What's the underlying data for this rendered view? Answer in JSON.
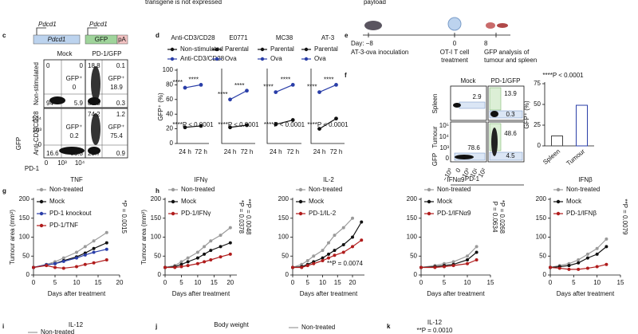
{
  "top_text": [
    "transgene is not expressed",
    "payload"
  ],
  "panel_labels": [
    "c",
    "d",
    "e",
    "f",
    "g",
    "h",
    "i",
    "j",
    "k"
  ],
  "panel_c": {
    "gene_labels": [
      "Pdcd1",
      "Pdcd1"
    ],
    "construct": [
      "Pdcd1",
      "GFP",
      "pA"
    ],
    "columns": [
      "Mock",
      "PD-1/GFP"
    ],
    "rows": [
      "Non-stimulated",
      "Anti-CD3/CD28"
    ],
    "gate_label": "GFP⁺",
    "plots": [
      {
        "tl": "0",
        "tr": "0",
        "bl": "94",
        "br": "5.9",
        "gfp": "0"
      },
      {
        "tl": "18.8",
        "tr": "0.1",
        "bl": "80.3",
        "br": "0.3",
        "gfp": "18.9"
      },
      {
        "bl": "16.6",
        "br": "83.3",
        "gfp": "0.2"
      },
      {
        "tl": "74.2",
        "tr": "1.2",
        "bl": "23.7",
        "br": "0.9",
        "gfp": "75.4"
      }
    ],
    "ylabel": "GFP",
    "xlabel": "PD-1",
    "yticks": [
      "10⁴",
      "10³",
      "0"
    ],
    "xticks": [
      "0",
      "10³",
      "10⁴"
    ]
  },
  "panel_e": {
    "steps": [
      {
        "day": "Day: −8",
        "lines": [
          "AT-3-ova inoculation"
        ]
      },
      {
        "day": "0",
        "lines": [
          "OT-I T cell",
          "treatment"
        ]
      },
      {
        "day": "8",
        "lines": [
          "GFP analysis of",
          "tumour and spleen"
        ]
      }
    ]
  },
  "panel_f": {
    "columns": [
      "Mock",
      "PD-1/GFP"
    ],
    "rows": [
      "Spleen",
      "Tumour"
    ],
    "gates": [
      "2.9",
      "13.9",
      "0.3",
      "78.6",
      "48.6",
      "4.5"
    ],
    "xlabel": "PD-1",
    "ylabel": "GFP",
    "xticks": [
      "−10⁰",
      "0",
      "10⁰",
      "10¹",
      "10²"
    ],
    "yticks": [
      "10⁵",
      "10⁴",
      "10³",
      "0"
    ]
  },
  "chart_data": [
    {
      "type": "line",
      "title": "Anti-CD3/CD28",
      "categories": [
        "24 h",
        "72 h"
      ],
      "series": [
        {
          "name": "Non-stimulated",
          "color": "#111111",
          "values": [
            22,
            24
          ]
        },
        {
          "name": "Anti-CD3/CD28",
          "color": "#2a3ea8",
          "values": [
            76,
            80
          ]
        }
      ],
      "ylim": [
        0,
        100
      ],
      "yticks": [
        0,
        20,
        40,
        60,
        80,
        100
      ],
      "ylabel": "GFP⁺ (%)",
      "significance": [
        "****",
        "****"
      ],
      "p_text": "****P < 0.0001"
    },
    {
      "type": "line",
      "title": "E0771",
      "categories": [
        "24 h",
        "72 h"
      ],
      "series": [
        {
          "name": "Parental",
          "color": "#111111",
          "values": [
            22,
            25
          ]
        },
        {
          "name": "Ova",
          "color": "#2a3ea8",
          "values": [
            60,
            72
          ]
        }
      ],
      "ylim": [
        0,
        100
      ],
      "significance": [
        "****",
        "****"
      ],
      "p_text": "****P < 0.0001"
    },
    {
      "type": "line",
      "title": "MC38",
      "categories": [
        "24 h",
        "72 h"
      ],
      "series": [
        {
          "name": "Parental",
          "color": "#111111",
          "values": [
            26,
            32
          ]
        },
        {
          "name": "Ova",
          "color": "#2a3ea8",
          "values": [
            70,
            80
          ]
        }
      ],
      "ylim": [
        0,
        100
      ],
      "significance": [
        "****",
        "****"
      ],
      "p_text": "****P < 0.0001"
    },
    {
      "type": "line",
      "title": "AT-3",
      "categories": [
        "24 h",
        "72 h"
      ],
      "series": [
        {
          "name": "Parental",
          "color": "#111111",
          "values": [
            20,
            34
          ]
        },
        {
          "name": "Ova",
          "color": "#2a3ea8",
          "values": [
            70,
            80
          ]
        }
      ],
      "ylim": [
        0,
        100
      ],
      "significance": [
        "****",
        "****"
      ],
      "p_text": "****P < 0.0001"
    },
    {
      "type": "bar",
      "categories": [
        "Spleen",
        "Tumour"
      ],
      "values": [
        12,
        49
      ],
      "colors": [
        "#444444",
        "#2a3ea8"
      ],
      "ylim": [
        0,
        75
      ],
      "yticks": [
        0,
        25,
        50,
        75
      ],
      "ylabel": "GFP⁺ (%)",
      "p_text": "****P < 0.0001"
    },
    {
      "type": "line",
      "title": "TNF",
      "x": [
        0,
        3,
        5,
        7,
        10,
        12,
        14,
        17
      ],
      "series": [
        {
          "name": "Non-treated",
          "color": "#9a9a9a",
          "values": [
            20,
            28,
            35,
            45,
            60,
            75,
            90,
            112
          ]
        },
        {
          "name": "Mock",
          "color": "#111111",
          "values": [
            20,
            27,
            30,
            38,
            48,
            58,
            70,
            85
          ]
        },
        {
          "name": "PD-1 knockout",
          "color": "#2a3ea8",
          "values": [
            20,
            27,
            30,
            36,
            45,
            53,
            60,
            68
          ]
        },
        {
          "name": "PD-1/TNF",
          "color": "#b01c1c",
          "values": [
            20,
            25,
            20,
            18,
            22,
            28,
            32,
            40
          ]
        }
      ],
      "xlim": [
        0,
        20
      ],
      "xticks": [
        0,
        5,
        10,
        15,
        20
      ],
      "ylim": [
        0,
        200
      ],
      "yticks": [
        0,
        50,
        100,
        150,
        200
      ],
      "xlabel": "Days after treatment",
      "ylabel": "Tumour area (mm²)",
      "annotations": [
        "*P = 0.0015"
      ]
    },
    {
      "type": "line",
      "title": "IFNγ",
      "x": [
        0,
        3,
        5,
        7,
        10,
        12,
        14,
        17,
        20
      ],
      "series": [
        {
          "name": "Non-treated",
          "color": "#9a9a9a",
          "values": [
            20,
            25,
            35,
            45,
            60,
            75,
            90,
            105,
            125
          ]
        },
        {
          "name": "Mock",
          "color": "#111111",
          "values": [
            20,
            22,
            28,
            35,
            45,
            55,
            65,
            75,
            85
          ]
        },
        {
          "name": "PD-1/IFNγ",
          "color": "#b01c1c",
          "values": [
            20,
            20,
            22,
            25,
            30,
            35,
            40,
            48,
            55
          ]
        }
      ],
      "xlim": [
        0,
        22
      ],
      "xticks": [
        0,
        5,
        10,
        15,
        20
      ],
      "ylim": [
        0,
        200
      ],
      "yticks": [
        0,
        50,
        100,
        150,
        200
      ],
      "xlabel": "Days after treatment",
      "ylabel": "Tumour area (mm²)",
      "annotations": [
        "*P = 0.0378",
        "**P = 0.0048"
      ]
    },
    {
      "type": "line",
      "title": "IL-2",
      "x": [
        0,
        3,
        5,
        7,
        10,
        12,
        14,
        17,
        20,
        23
      ],
      "series": [
        {
          "name": "Non-treated",
          "color": "#9a9a9a",
          "values": [
            20,
            28,
            38,
            50,
            65,
            85,
            105,
            125,
            150,
            null
          ]
        },
        {
          "name": "Mock",
          "color": "#111111",
          "values": [
            20,
            22,
            28,
            35,
            45,
            55,
            65,
            80,
            100,
            140
          ]
        },
        {
          "name": "PD-1/IL-2",
          "color": "#b01c1c",
          "values": [
            20,
            20,
            25,
            30,
            38,
            45,
            52,
            60,
            75,
            92
          ]
        }
      ],
      "xlim": [
        0,
        24
      ],
      "xticks": [
        0,
        5,
        10,
        15,
        20
      ],
      "ylim": [
        0,
        200
      ],
      "yticks": [
        0,
        50,
        100,
        150,
        200
      ],
      "xlabel": "Days after treatment",
      "annotations": [
        "**P = 0.0074"
      ]
    },
    {
      "type": "line",
      "title": "IFNα9",
      "x": [
        0,
        3,
        5,
        7,
        10,
        12
      ],
      "series": [
        {
          "name": "Non-treated",
          "color": "#9a9a9a",
          "values": [
            20,
            25,
            30,
            35,
            50,
            75
          ]
        },
        {
          "name": "Mock",
          "color": "#111111",
          "values": [
            20,
            22,
            25,
            28,
            40,
            60
          ]
        },
        {
          "name": "PD-1/IFNα9",
          "color": "#b01c1c",
          "values": [
            20,
            20,
            22,
            25,
            30,
            40
          ]
        }
      ],
      "xlim": [
        0,
        15
      ],
      "xticks": [
        0,
        5,
        10,
        15
      ],
      "ylim": [
        0,
        200
      ],
      "yticks": [
        0,
        50,
        100,
        150,
        200
      ],
      "xlabel": "Days after treatment",
      "annotations": [
        "P = 0.0634",
        "*P = 0.0268"
      ]
    },
    {
      "type": "line",
      "title": "IFNβ",
      "x": [
        0,
        2,
        4,
        6,
        8,
        10,
        12
      ],
      "series": [
        {
          "name": "Non-treated",
          "color": "#9a9a9a",
          "values": [
            20,
            25,
            30,
            40,
            55,
            70,
            95
          ]
        },
        {
          "name": "Mock",
          "color": "#111111",
          "values": [
            20,
            22,
            25,
            32,
            45,
            55,
            75
          ]
        },
        {
          "name": "PD-1/IFNβ",
          "color": "#b01c1c",
          "values": [
            20,
            18,
            15,
            15,
            18,
            22,
            28
          ]
        }
      ],
      "xlim": [
        0,
        15
      ],
      "xticks": [
        0,
        5,
        10,
        15
      ],
      "ylim": [
        0,
        200
      ],
      "yticks": [
        0,
        50,
        100,
        150,
        200
      ],
      "xlabel": "Days after treatment",
      "annotations": [
        "**P = 0.0079"
      ]
    }
  ],
  "bottom": {
    "i": {
      "title": "IL-12",
      "legend": "Non-treated"
    },
    "j": {
      "title": "Body weight",
      "legend": "Non-treated"
    },
    "k": {
      "title": "IL-12",
      "p": "**P = 0.0010"
    }
  }
}
